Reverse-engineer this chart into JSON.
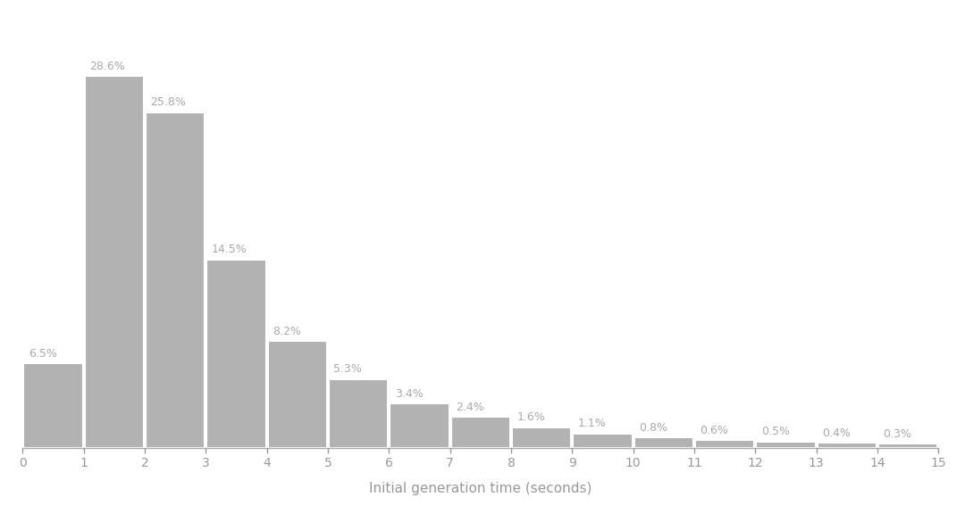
{
  "categories": [
    0,
    1,
    2,
    3,
    4,
    5,
    6,
    7,
    8,
    9,
    10,
    11,
    12,
    13,
    14
  ],
  "values": [
    6.5,
    28.6,
    25.8,
    14.5,
    8.2,
    5.3,
    3.4,
    2.4,
    1.6,
    1.1,
    0.8,
    0.6,
    0.5,
    0.4,
    0.3
  ],
  "labels": [
    "6.5%",
    "28.6%",
    "25.8%",
    "14.5%",
    "8.2%",
    "5.3%",
    "3.4%",
    "2.4%",
    "1.6%",
    "1.1%",
    "0.8%",
    "0.6%",
    "0.5%",
    "0.4%",
    "0.3%"
  ],
  "bar_color": "#b2b2b2",
  "bar_edge_color": "#ffffff",
  "background_color": "#ffffff",
  "xlabel": "Initial generation time (seconds)",
  "xlabel_fontsize": 11,
  "label_fontsize": 9,
  "label_color": "#aaaaaa",
  "xlim": [
    0,
    15
  ],
  "ylim": [
    0,
    33
  ],
  "xticks": [
    0,
    1,
    2,
    3,
    4,
    5,
    6,
    7,
    8,
    9,
    10,
    11,
    12,
    13,
    14,
    15
  ],
  "tick_color": "#999999",
  "spine_color": "#aaaaaa",
  "bar_width": 0.97
}
